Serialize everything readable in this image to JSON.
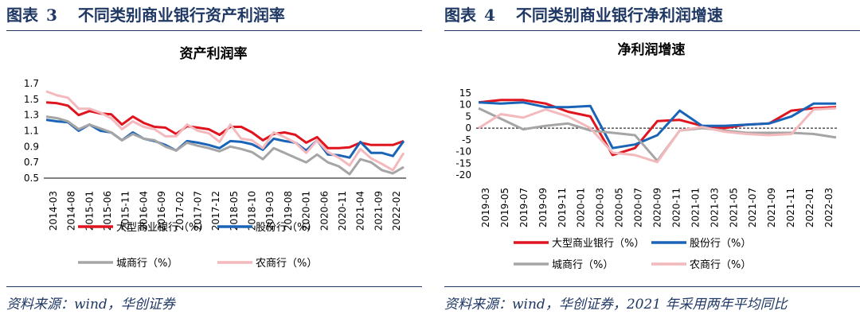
{
  "figures": [
    {
      "label": "图表",
      "number": "3",
      "title": "不同类别商业银行资产利润率",
      "source": "资料来源：wind，华创证券"
    },
    {
      "label": "图表",
      "number": "4",
      "title": "不同类别商业银行净利润增速",
      "source": "资料来源：wind，华创证券，2021 年采用两年平均同比"
    }
  ],
  "chart_data": [
    {
      "type": "line",
      "title": "资产利润率",
      "xlabel": "",
      "ylabel": "",
      "ylim": [
        0.5,
        1.7
      ],
      "yticks": [
        "1.7",
        "1.5",
        "1.3",
        "1.1",
        "0.9",
        "0.7",
        "0.5"
      ],
      "x_ticklabels": [
        "2014-03",
        "2014-08",
        "2015-01",
        "2015-06",
        "2015-11",
        "2016-04",
        "2016-09",
        "2017-02",
        "2017-07",
        "2017-12",
        "2018-05",
        "2018-10",
        "2019-03",
        "2019-08",
        "2020-01",
        "2020-06",
        "2020-11",
        "2021-04",
        "2021-09",
        "2022-02"
      ],
      "series": [
        {
          "name": "大型商业银行（%）",
          "color": "#e0141e",
          "values": [
            1.46,
            1.45,
            1.42,
            1.3,
            1.35,
            1.32,
            1.31,
            1.18,
            1.28,
            1.2,
            1.15,
            1.14,
            1.06,
            1.16,
            1.14,
            1.12,
            1.05,
            1.15,
            1.15,
            1.08,
            0.98,
            1.06,
            1.08,
            1.05,
            0.95,
            1.02,
            0.88,
            0.88,
            0.89,
            0.95,
            0.92,
            0.92,
            0.92,
            0.97
          ]
        },
        {
          "name": "股份行（%）",
          "color": "#1a64b8",
          "values": [
            1.24,
            1.22,
            1.21,
            1.1,
            1.18,
            1.1,
            1.08,
            0.98,
            1.08,
            1.0,
            0.97,
            0.92,
            0.85,
            0.97,
            0.95,
            0.92,
            0.88,
            0.97,
            0.96,
            0.93,
            0.86,
            1.0,
            0.97,
            0.95,
            0.85,
            0.98,
            0.8,
            0.79,
            0.76,
            0.96,
            0.82,
            0.82,
            0.78,
            0.97
          ]
        },
        {
          "name": "城商行（%）",
          "color": "#a5a5a5",
          "values": [
            1.28,
            1.26,
            1.22,
            1.12,
            1.18,
            1.13,
            1.08,
            0.98,
            1.06,
            1.0,
            0.98,
            0.9,
            0.85,
            0.95,
            0.91,
            0.88,
            0.84,
            0.9,
            0.87,
            0.83,
            0.74,
            0.88,
            0.82,
            0.76,
            0.7,
            0.8,
            0.7,
            0.65,
            0.55,
            0.74,
            0.7,
            0.6,
            0.56,
            0.64
          ]
        },
        {
          "name": "农商行（%）",
          "color": "#f4b9bc",
          "values": [
            1.6,
            1.55,
            1.52,
            1.38,
            1.38,
            1.33,
            1.26,
            1.12,
            1.22,
            1.15,
            1.12,
            1.03,
            1.03,
            1.18,
            1.1,
            1.07,
            0.96,
            1.18,
            1.0,
            0.98,
            0.88,
            1.08,
            1.02,
            0.95,
            0.82,
            0.98,
            0.83,
            0.76,
            0.66,
            0.87,
            0.75,
            0.68,
            0.6,
            0.82
          ]
        }
      ]
    },
    {
      "type": "line",
      "title": "净利润增速",
      "xlabel": "",
      "ylabel": "",
      "ylim": [
        -20,
        15
      ],
      "yticks": [
        "15",
        "10",
        "5",
        "0",
        "-5",
        "-10",
        "-15",
        "-20"
      ],
      "x_ticklabels": [
        "2019-03",
        "2019-05",
        "2019-07",
        "2019-09",
        "2019-11",
        "2020-01",
        "2020-03",
        "2020-05",
        "2020-07",
        "2020-09",
        "2020-11",
        "2021-01",
        "2021-03",
        "2021-05",
        "2021-07",
        "2021-09",
        "2021-11",
        "2022-01",
        "2022-03"
      ],
      "series": [
        {
          "name": "大型商业银行（%）",
          "color": "#e0141e",
          "values": [
            11,
            12,
            12,
            10.5,
            7,
            5,
            -11.5,
            -8.5,
            3,
            3.5,
            1,
            0,
            1.5,
            2,
            7.5,
            8.5,
            9
          ]
        },
        {
          "name": "股份行（%）",
          "color": "#1a64b8",
          "values": [
            11,
            10.5,
            11,
            9,
            9,
            9.5,
            -8.5,
            -7,
            -3,
            7.5,
            1,
            1,
            1.5,
            2,
            5,
            10.5,
            10.5
          ]
        },
        {
          "name": "城商行（%）",
          "color": "#a5a5a5",
          "values": [
            8.5,
            4,
            -0.5,
            1,
            2,
            -1,
            -2,
            -3,
            -14,
            -1,
            0,
            -1,
            -2,
            -2,
            -2,
            -2.5,
            -4
          ]
        },
        {
          "name": "农商行（%）",
          "color": "#f4b9bc",
          "values": [
            0,
            6,
            4.5,
            8,
            5,
            0,
            -10.5,
            -11.5,
            -14.5,
            -1,
            0.5,
            -1.5,
            -2.5,
            -3,
            -2.5,
            8,
            8.5
          ]
        }
      ]
    }
  ]
}
